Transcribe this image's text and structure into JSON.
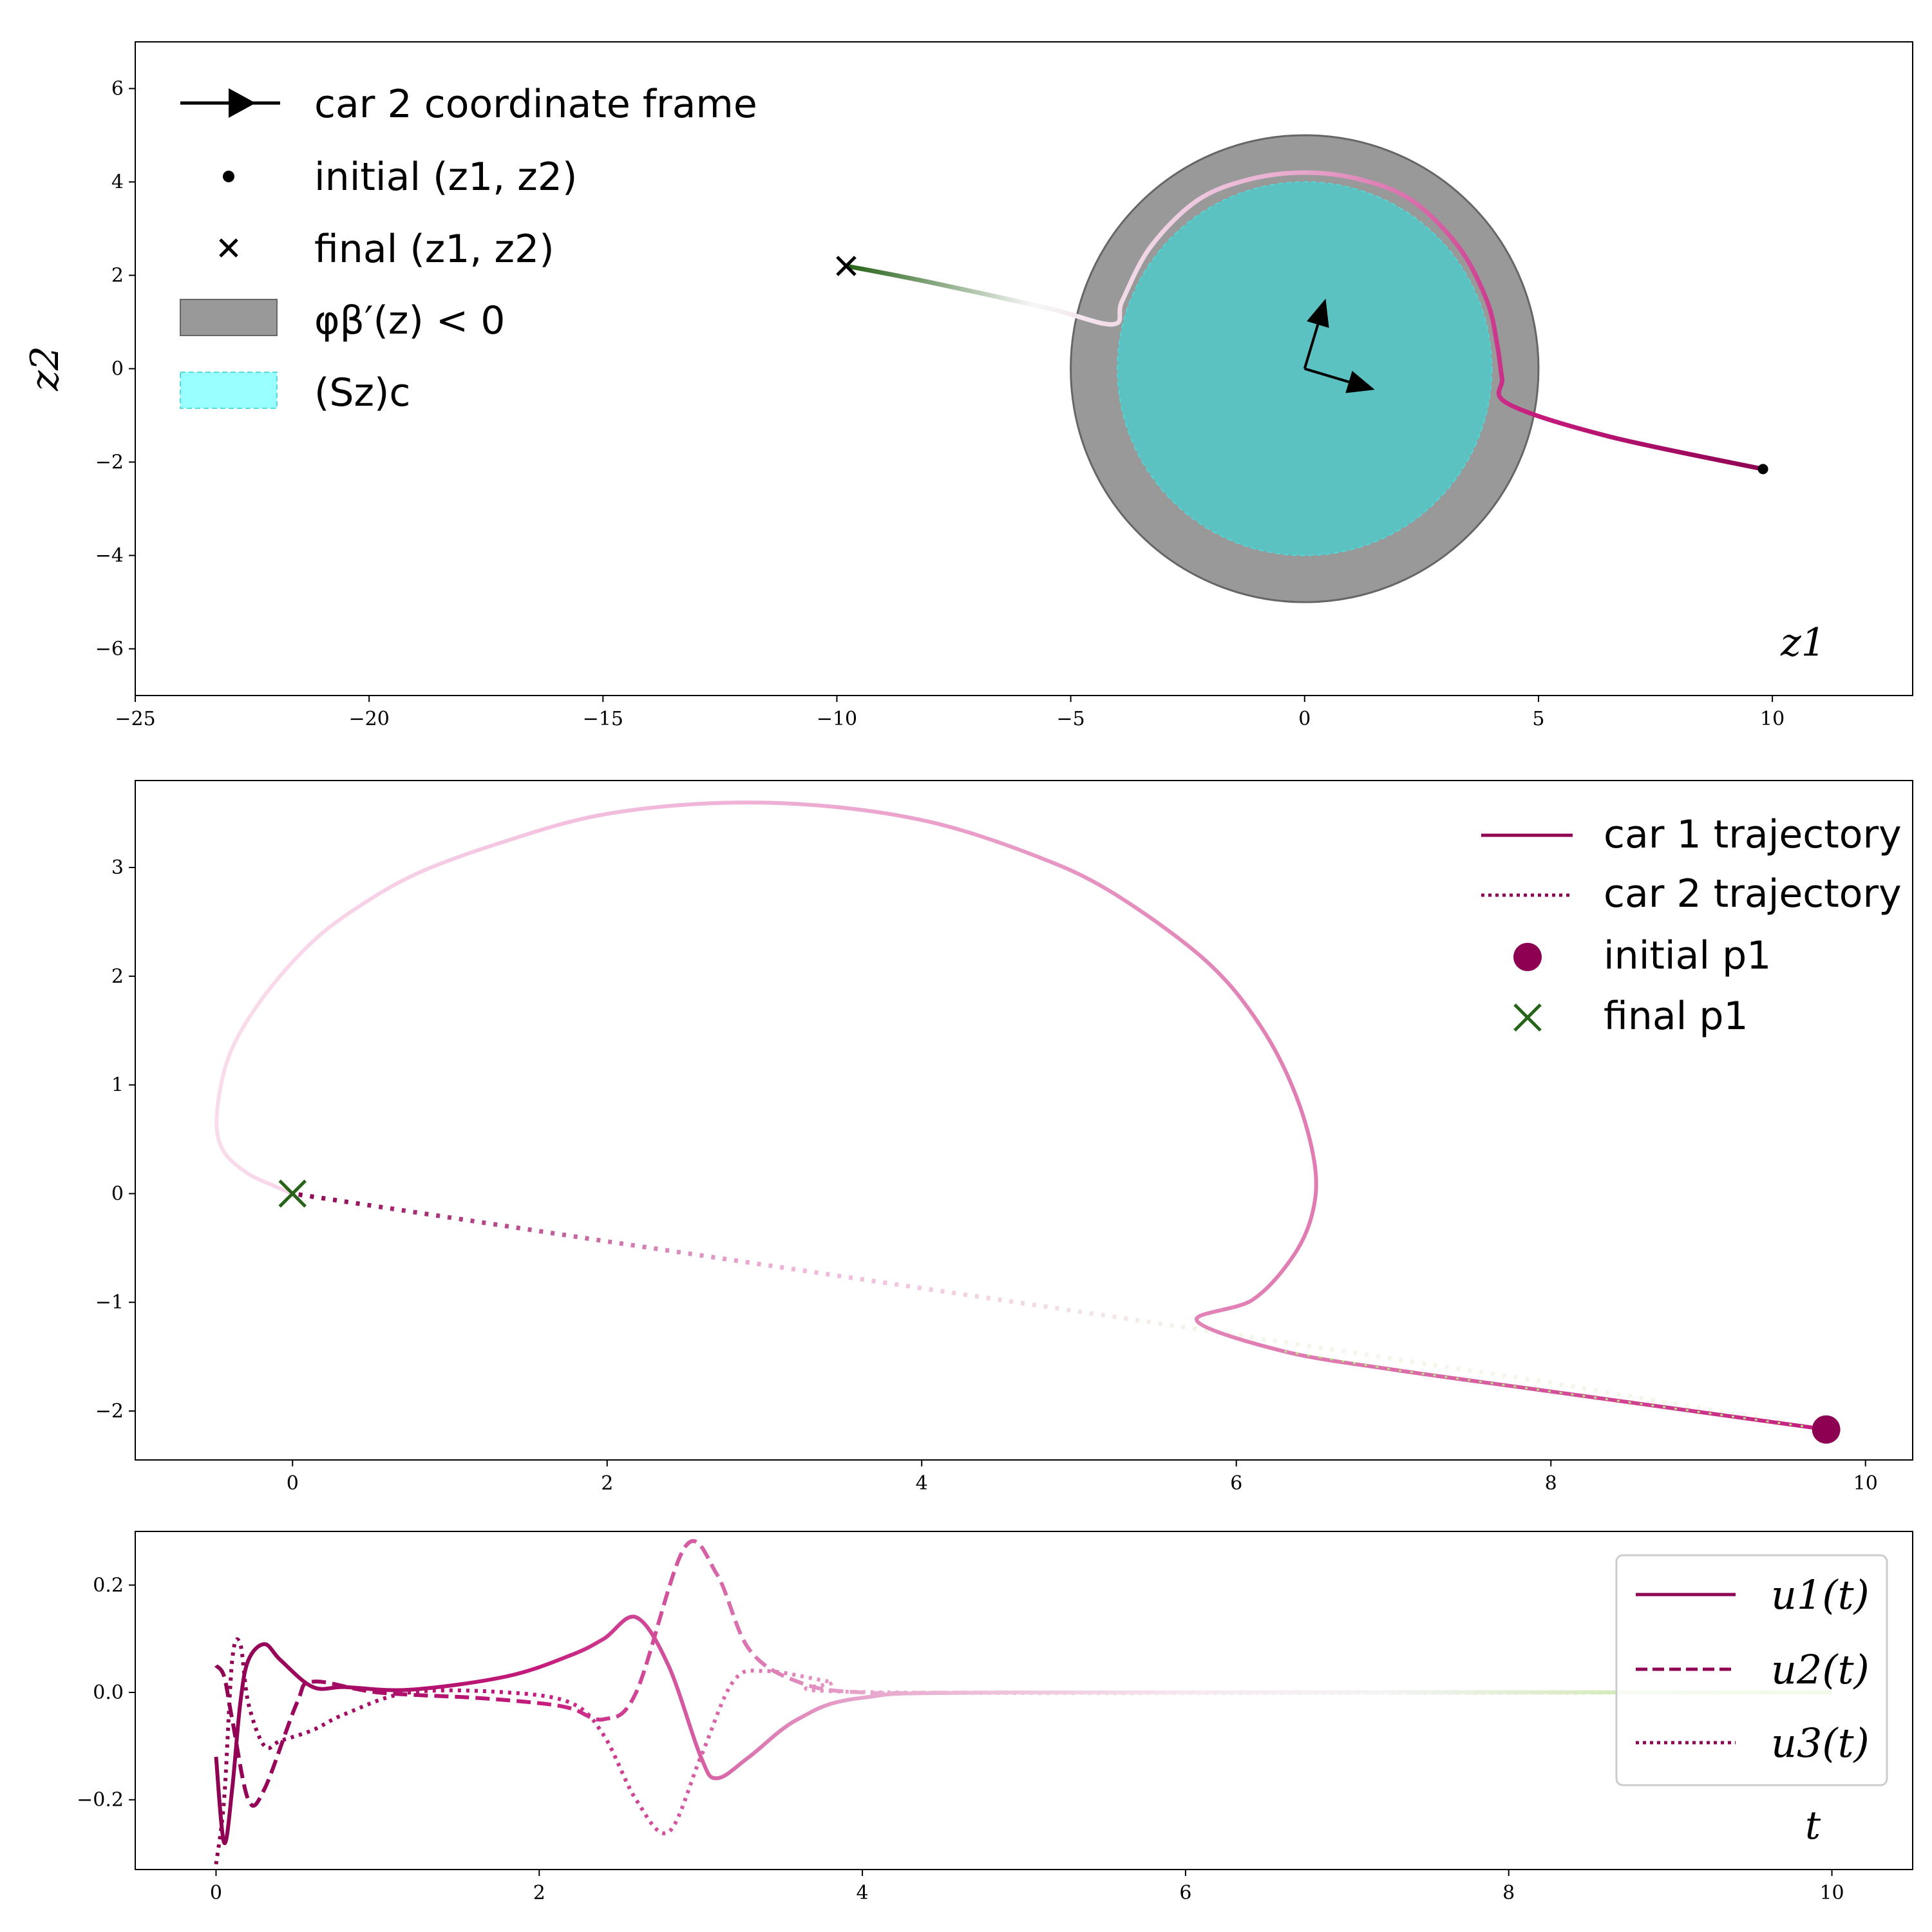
{
  "figure": {
    "title": ""
  },
  "colors": {
    "traj_dark": "#8e0152",
    "traj_pink": "#de77ae",
    "traj_light": "#f7d3e8",
    "final_green": "#276419",
    "green_light": "#b8e186",
    "obstacle_gray": "#999999",
    "safe_cyan": "#5bc1c1",
    "legend_cyan": "#99ffff"
  },
  "chart_data": [
    {
      "type": "line",
      "name": "panel-1",
      "xlim": [
        -25,
        13
      ],
      "ylim": [
        -7,
        7
      ],
      "xticks": [
        -25,
        -20,
        -15,
        -10,
        -5,
        0,
        5,
        10
      ],
      "yticks": [
        -6,
        -4,
        -2,
        0,
        2,
        4,
        6
      ],
      "xlabel": "z1",
      "ylabel": "z2",
      "legend_position": "upper-left",
      "legend": [
        {
          "label": "car 2 coordinate frame",
          "marker": "arrow"
        },
        {
          "label": "initial (z1, z2)",
          "marker": "dot"
        },
        {
          "label": "final (z1, z2)",
          "marker": "x"
        },
        {
          "label": "φβ′(z) < 0",
          "marker": "patch-gray"
        },
        {
          "label": "(Sz)c",
          "marker": "patch-cyan"
        }
      ],
      "outer_circle": {
        "center": [
          0,
          0
        ],
        "radius": 5
      },
      "inner_circle": {
        "center": [
          0,
          0
        ],
        "radius": 4
      },
      "frame_axes": {
        "origin": [
          0,
          0
        ],
        "x_axis_end": [
          1.5,
          -0.45
        ],
        "y_axis_end": [
          0.45,
          1.5
        ]
      },
      "trajectory": [
        [
          9.8,
          -2.15
        ],
        [
          6.5,
          -1.45
        ],
        [
          4.35,
          -0.75
        ],
        [
          4.22,
          -0.2
        ],
        [
          4.12,
          0.5
        ],
        [
          3.9,
          1.45
        ],
        [
          3.3,
          2.6
        ],
        [
          2.3,
          3.6
        ],
        [
          1.2,
          4.05
        ],
        [
          0.0,
          4.2
        ],
        [
          -1.2,
          4.05
        ],
        [
          -2.3,
          3.6
        ],
        [
          -3.3,
          2.6
        ],
        [
          -3.9,
          1.45
        ],
        [
          -4.1,
          0.95
        ],
        [
          -5.5,
          1.3
        ],
        [
          -8.0,
          1.85
        ],
        [
          -9.8,
          2.2
        ]
      ],
      "initial": [
        9.8,
        -2.15
      ],
      "final": [
        -9.8,
        2.2
      ]
    },
    {
      "type": "line",
      "name": "panel-2",
      "xlim": [
        -1,
        10.3
      ],
      "ylim": [
        -2.45,
        3.8
      ],
      "xticks": [
        0,
        2,
        4,
        6,
        8,
        10
      ],
      "yticks": [
        -2,
        -1,
        0,
        1,
        2,
        3
      ],
      "legend_position": "upper-right",
      "legend": [
        {
          "label": "car 1 trajectory",
          "style": "solid"
        },
        {
          "label": "car 2 trajectory",
          "style": "dotted"
        },
        {
          "label": "initial p1",
          "marker": "circle"
        },
        {
          "label": "final p1",
          "marker": "x"
        }
      ],
      "series": [
        {
          "name": "car 1 trajectory",
          "style": "solid",
          "x": [
            9.75,
            8.0,
            7.0,
            6.3,
            5.75,
            6.1,
            6.35,
            6.48,
            6.5,
            6.38,
            6.15,
            5.8,
            5.2,
            4.7,
            4.05,
            3.35,
            2.65,
            1.95,
            1.35,
            0.8,
            0.4,
            0.1,
            -0.2,
            -0.4,
            -0.48,
            -0.45,
            -0.3,
            -0.1,
            0.0
          ],
          "y": [
            -2.17,
            -1.82,
            -1.62,
            -1.45,
            -1.17,
            -0.98,
            -0.6,
            -0.2,
            0.25,
            0.9,
            1.55,
            2.15,
            2.78,
            3.12,
            3.42,
            3.57,
            3.59,
            3.48,
            3.24,
            2.95,
            2.62,
            2.28,
            1.78,
            1.28,
            0.75,
            0.42,
            0.2,
            0.06,
            0.0
          ]
        },
        {
          "name": "car 2 trajectory",
          "style": "dotted",
          "x": [
            9.75,
            8.0,
            6.0,
            4.0,
            2.0,
            0.0
          ],
          "y": [
            -2.17,
            -1.74,
            -1.3,
            -0.87,
            -0.44,
            0.0
          ]
        }
      ],
      "initial_p1": [
        9.75,
        -2.17
      ],
      "final_p1": [
        0.0,
        0.0
      ]
    },
    {
      "type": "line",
      "name": "panel-3",
      "xlim": [
        -0.5,
        10.5
      ],
      "ylim": [
        -0.33,
        0.3
      ],
      "xticks": [
        0,
        2,
        4,
        6,
        8,
        10
      ],
      "yticks": [
        -0.2,
        0.0,
        0.2
      ],
      "xlabel": "t",
      "legend_position": "upper-right",
      "series": [
        {
          "name": "u1(t)",
          "style": "solid",
          "x": [
            0.0,
            0.05,
            0.1,
            0.15,
            0.2,
            0.3,
            0.4,
            0.6,
            0.8,
            1.2,
            1.8,
            2.2,
            2.4,
            2.6,
            2.8,
            3.0,
            3.1,
            3.3,
            3.6,
            4.0,
            5.0,
            10.0
          ],
          "y": [
            -0.12,
            -0.28,
            -0.18,
            -0.02,
            0.06,
            0.09,
            0.06,
            0.01,
            0.01,
            0.005,
            0.03,
            0.07,
            0.1,
            0.14,
            0.05,
            -0.12,
            -0.16,
            -0.12,
            -0.05,
            -0.01,
            0.0,
            0.0
          ]
        },
        {
          "name": "u2(t)",
          "style": "dashed",
          "x": [
            0.0,
            0.05,
            0.1,
            0.2,
            0.3,
            0.5,
            0.6,
            1.0,
            1.6,
            2.0,
            2.2,
            2.4,
            2.6,
            2.9,
            3.1,
            3.3,
            3.6,
            4.0,
            5.0,
            10.0
          ],
          "y": [
            0.05,
            0.03,
            -0.05,
            -0.2,
            -0.18,
            -0.02,
            0.02,
            0.0,
            -0.01,
            -0.02,
            -0.03,
            -0.05,
            0.0,
            0.27,
            0.22,
            0.08,
            0.02,
            0.0,
            0.0,
            0.0
          ]
        },
        {
          "name": "u3(t)",
          "style": "dotted",
          "x": [
            0.0,
            0.05,
            0.1,
            0.15,
            0.2,
            0.3,
            0.4,
            0.6,
            0.8,
            1.2,
            1.8,
            2.2,
            2.4,
            2.6,
            2.8,
            3.0,
            3.2,
            3.4,
            3.8,
            4.2,
            10.0
          ],
          "y": [
            -0.32,
            -0.2,
            0.06,
            0.09,
            -0.02,
            -0.1,
            -0.09,
            -0.07,
            -0.04,
            0.0,
            0.0,
            -0.02,
            -0.08,
            -0.2,
            -0.26,
            -0.12,
            0.02,
            0.04,
            0.02,
            0.0,
            0.0
          ]
        }
      ]
    }
  ]
}
